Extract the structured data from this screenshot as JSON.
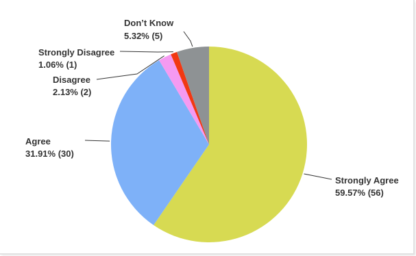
{
  "chart_data": {
    "type": "pie",
    "title": "",
    "start_angle_deg": 0,
    "direction": "clockwise",
    "slices": [
      {
        "label": "Strongly Agree",
        "percent_text": "59.57% (56)",
        "percent": 59.57,
        "count": 56,
        "color": "#d7da52"
      },
      {
        "label": "Agree",
        "percent_text": "31.91% (30)",
        "percent": 31.91,
        "count": 30,
        "color": "#7eb1f8"
      },
      {
        "label": "Disagree",
        "percent_text": "2.13% (2)",
        "percent": 2.13,
        "count": 2,
        "color": "#f59af1"
      },
      {
        "label": "Strongly Disagree",
        "percent_text": "1.06% (1)",
        "percent": 1.06,
        "count": 1,
        "color": "#f23812"
      },
      {
        "label": "Don’t Know",
        "percent_text": "5.32% (5)",
        "percent": 5.32,
        "count": 5,
        "color": "#8e9294"
      }
    ]
  }
}
